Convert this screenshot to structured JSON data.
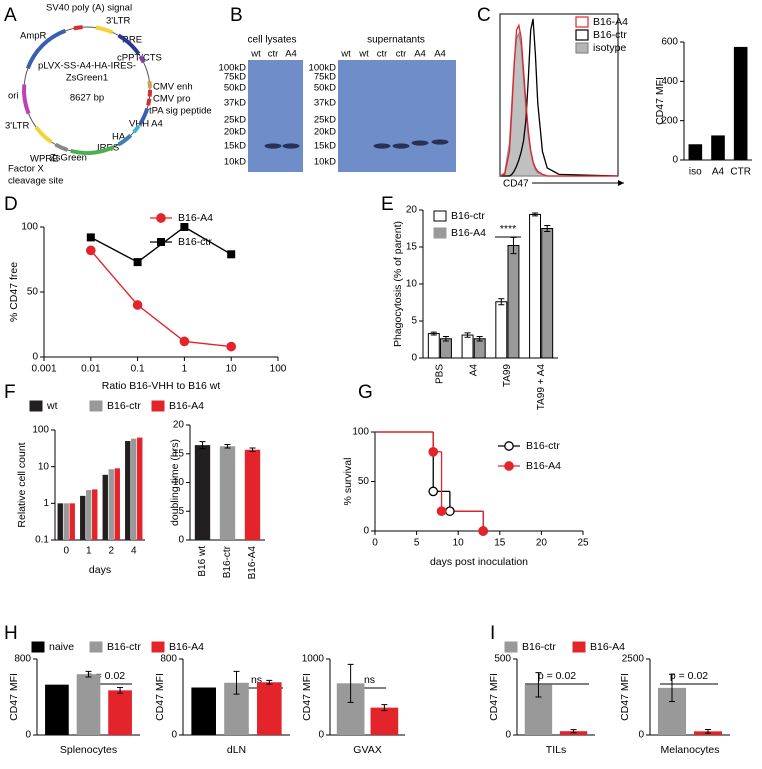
{
  "panel_labels": [
    "A",
    "B",
    "C",
    "D",
    "E",
    "F",
    "G",
    "H",
    "I"
  ],
  "plasmid": {
    "name": [
      "pLVX-SS-A4-HA-IRES-",
      "ZsGreen1"
    ],
    "size": "8627 bp",
    "features": [
      "SV40 poly (A) signal",
      "AmpR",
      "3'LTR",
      "RRE",
      "cPPT/CTS",
      "CMV enh",
      "CMV pro",
      "tPA sig peptide",
      "VHH A4",
      "HA",
      "IRES",
      "ZsGreen",
      "WPRE",
      "Factor X",
      "cleavage site",
      "3'LTR",
      "ori"
    ]
  },
  "blots": [
    {
      "title": "cell lysates",
      "lanes": [
        "wt",
        "ctr",
        "A4"
      ],
      "markers": [
        "100kD",
        "75kD",
        "50kD",
        "37kD",
        "25kD",
        "20kD",
        "15kD",
        "10kD"
      ]
    },
    {
      "title": "supernatants",
      "lanes": [
        "wt",
        "wt",
        "ctr",
        "ctr",
        "A4",
        "A4"
      ],
      "markers": [
        "100kD",
        "75kD",
        "50kD",
        "37kD",
        "25kD",
        "20kD",
        "15kD",
        "10kD"
      ]
    }
  ],
  "chart_data": [
    {
      "type": "density",
      "xlabel": "CD47",
      "xlim": [
        0,
        100
      ],
      "ylim": [
        0,
        100
      ],
      "x": [
        0,
        4,
        8,
        10,
        12,
        14,
        16,
        18,
        20,
        22,
        24,
        26,
        28,
        30,
        32,
        36,
        40,
        50,
        100
      ],
      "series": [
        {
          "name": "B16-A4",
          "color": "#e3242b",
          "values": [
            0,
            1,
            15,
            40,
            68,
            90,
            93,
            85,
            65,
            45,
            28,
            16,
            9,
            5,
            3,
            1,
            0,
            0,
            0
          ]
        },
        {
          "name": "B16-ctr",
          "color": "#000000",
          "values": [
            0,
            0,
            0,
            1,
            3,
            6,
            10,
            15,
            22,
            35,
            60,
            90,
            97,
            75,
            45,
            15,
            5,
            1,
            0
          ]
        },
        {
          "name": "isotype",
          "color": "#888888",
          "fill": "#b5b5b5",
          "values": [
            0,
            2,
            20,
            45,
            70,
            85,
            88,
            80,
            60,
            40,
            25,
            15,
            8,
            4,
            2,
            1,
            0,
            0,
            0
          ]
        }
      ]
    },
    {
      "type": "bar",
      "categories": [
        "iso",
        "A4",
        "CTR"
      ],
      "values": [
        80,
        125,
        575
      ],
      "color": "#000000",
      "ylim": [
        0,
        600
      ],
      "yticks": [
        0,
        200,
        400,
        600
      ],
      "ylabel": "CD47 MFI"
    },
    {
      "type": "line",
      "x": [
        0.01,
        0.1,
        1,
        10
      ],
      "xlog": true,
      "xlim": [
        0.001,
        100
      ],
      "xticks": [
        0.001,
        0.01,
        0.1,
        1,
        10,
        100
      ],
      "ylim": [
        0,
        100
      ],
      "yticks": [
        0,
        50,
        100
      ],
      "xlabel": "Ratio B16-VHH to B16 wt",
      "ylabel": "% CD47 free",
      "series": [
        {
          "name": "B16-A4",
          "color": "#e3242b",
          "marker": "circle",
          "values": [
            82,
            40,
            12,
            8
          ]
        },
        {
          "name": "B16-ctr",
          "color": "#000000",
          "marker": "square",
          "values": [
            92,
            73,
            100,
            79
          ]
        }
      ]
    },
    {
      "type": "bar",
      "categories": [
        "PBS",
        "A4",
        "TA99",
        "TA99 + A4"
      ],
      "ylim": [
        0,
        20
      ],
      "yticks": [
        0,
        5,
        10,
        15,
        20
      ],
      "ylabel": "Phagocytosis (% of parent)",
      "annotation": "****",
      "series": [
        {
          "name": "B16-ctr",
          "color": "#ffffff",
          "values": [
            3.3,
            3.1,
            7.6,
            19.4
          ],
          "errors": [
            0.2,
            0.3,
            0.4,
            0.2
          ]
        },
        {
          "name": "B16-A4",
          "color": "#999999",
          "values": [
            2.6,
            2.6,
            15.2,
            17.5
          ],
          "errors": [
            0.3,
            0.3,
            1.1,
            0.4
          ]
        }
      ]
    },
    {
      "type": "bar",
      "categories": [
        "0",
        "1",
        "2",
        "4"
      ],
      "ylog": true,
      "ylim": [
        0.1,
        100
      ],
      "yticks": [
        0.1,
        1,
        10,
        100
      ],
      "xlabel": "days",
      "ylabel": "Relative cell count",
      "series": [
        {
          "name": "wt",
          "color": "#231f20",
          "values": [
            1,
            1.6,
            6,
            50
          ]
        },
        {
          "name": "B16-ctr",
          "color": "#999999",
          "values": [
            1,
            2.3,
            8.5,
            58
          ]
        },
        {
          "name": "B16-A4",
          "color": "#e3242b",
          "values": [
            1,
            2.4,
            9,
            62
          ]
        }
      ]
    },
    {
      "type": "bar",
      "categories": [
        "B16 wt",
        "B16-ctr",
        "B16-A4"
      ],
      "values": [
        16.5,
        16.3,
        15.7
      ],
      "errors": [
        0.6,
        0.3,
        0.3
      ],
      "colors": [
        "#231f20",
        "#999999",
        "#e3242b"
      ],
      "ylim": [
        0,
        20
      ],
      "yticks": [
        0,
        5,
        10,
        15,
        20
      ],
      "ylabel": "doubling time (hrs)"
    },
    {
      "type": "step",
      "xlim": [
        0,
        25
      ],
      "xticks": [
        0,
        5,
        10,
        15,
        20,
        25
      ],
      "ylim": [
        0,
        100
      ],
      "yticks": [
        0,
        50,
        100
      ],
      "xlabel": "days post inoculation",
      "ylabel": "% survival",
      "series": [
        {
          "name": "B16-ctr",
          "color": "#000000",
          "marker": "open-circle",
          "x": [
            0,
            7,
            9,
            13
          ],
          "values": [
            100,
            40,
            20,
            0
          ]
        },
        {
          "name": "B16-A4",
          "color": "#e3242b",
          "marker": "circle",
          "x": [
            0,
            7,
            8,
            13
          ],
          "values": [
            100,
            80,
            20,
            0
          ]
        }
      ]
    },
    {
      "type": "bar",
      "categories": [
        null
      ],
      "xlabel": "Splenocytes",
      "ylabel": "CD47 MFI",
      "ylim": [
        0,
        800
      ],
      "yticks": [
        0,
        800
      ],
      "annotation": "p = 0.02",
      "series": [
        {
          "name": "naive",
          "color": "#000000",
          "values": [
            530
          ],
          "errors": [
            null
          ]
        },
        {
          "name": "B16-ctr",
          "color": "#999999",
          "values": [
            640
          ],
          "errors": [
            30
          ]
        },
        {
          "name": "B16-A4",
          "color": "#e3242b",
          "values": [
            470
          ],
          "errors": [
            30
          ]
        }
      ]
    },
    {
      "type": "bar",
      "categories": [
        null
      ],
      "xlabel": "dLN",
      "ylabel": "CD47 MFI",
      "ylim": [
        0,
        800
      ],
      "yticks": [
        0,
        800
      ],
      "annotation": "ns",
      "series": [
        {
          "color": "#000000",
          "values": [
            500
          ],
          "errors": [
            null
          ]
        },
        {
          "color": "#999999",
          "values": [
            550
          ],
          "errors": [
            120
          ]
        },
        {
          "color": "#e3242b",
          "values": [
            555
          ],
          "errors": [
            20
          ]
        }
      ]
    },
    {
      "type": "bar",
      "categories": [
        null
      ],
      "xlabel": "GVAX",
      "ylabel": "CD47 MFI",
      "ylim": [
        0,
        1000
      ],
      "yticks": [
        0,
        1000
      ],
      "annotation": "ns",
      "series": [
        {
          "color": "#999999",
          "values": [
            680
          ],
          "errors": [
            250
          ]
        },
        {
          "color": "#e3242b",
          "values": [
            360
          ],
          "errors": [
            40
          ]
        }
      ]
    },
    {
      "type": "bar",
      "categories": [
        null
      ],
      "xlabel": "TILs",
      "ylabel": "CD47 MFI",
      "ylim": [
        0,
        500
      ],
      "yticks": [
        0,
        500
      ],
      "annotation": "p = 0.02",
      "series": [
        {
          "name": "B16-ctr",
          "color": "#999999",
          "values": [
            330
          ],
          "errors": [
            80
          ]
        },
        {
          "name": "B16-A4",
          "color": "#e3242b",
          "values": [
            25
          ],
          "errors": [
            10
          ]
        }
      ]
    },
    {
      "type": "bar",
      "categories": [
        null
      ],
      "xlabel": "Melanocytes",
      "ylabel": "CD47 MFI",
      "ylim": [
        0,
        2500
      ],
      "yticks": [
        0,
        2500
      ],
      "annotation": "p = 0.02",
      "series": [
        {
          "color": "#999999",
          "values": [
            1550
          ],
          "errors": [
            450
          ]
        },
        {
          "color": "#e3242b",
          "values": [
            120
          ],
          "errors": [
            60
          ]
        }
      ]
    }
  ]
}
